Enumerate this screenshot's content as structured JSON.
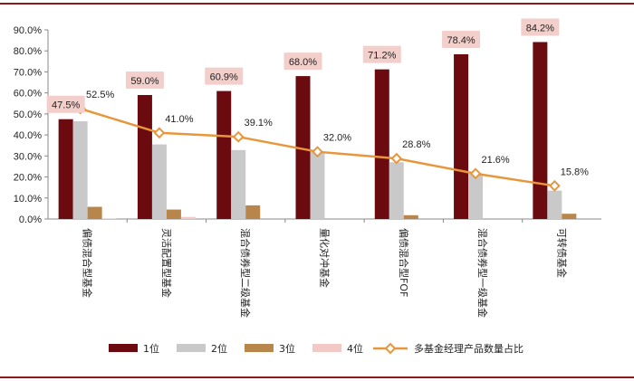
{
  "chart_data": {
    "type": "bar+line",
    "categories": [
      "偏债混合型基金",
      "灵活配置型基金",
      "混合债券型二级基金",
      "量化对冲基金",
      "偏债混合型FOF",
      "混合债券型一级基金",
      "可转债基金"
    ],
    "series": [
      {
        "name": "1位",
        "type": "bar",
        "color": "#6b0a0f",
        "values": [
          47.5,
          59.0,
          60.9,
          68.0,
          71.2,
          78.4,
          84.2
        ]
      },
      {
        "name": "2位",
        "type": "bar",
        "color": "#c9c9c9",
        "values": [
          46.5,
          35.5,
          32.8,
          32.0,
          27.0,
          21.6,
          13.5
        ]
      },
      {
        "name": "3位",
        "type": "bar",
        "color": "#b8864b",
        "values": [
          5.8,
          4.5,
          6.5,
          0,
          1.8,
          0,
          2.5
        ]
      },
      {
        "name": "4位",
        "type": "bar",
        "color": "#f2c9c4",
        "values": [
          0.3,
          1.0,
          0,
          0,
          0,
          0,
          0
        ]
      },
      {
        "name": "多基金经理产品数量占比",
        "type": "line",
        "color": "#e8963c",
        "values": [
          52.5,
          41.0,
          39.1,
          32.0,
          28.8,
          21.6,
          15.8
        ]
      }
    ],
    "bar_labels": [
      "47.5%",
      "59.0%",
      "60.9%",
      "68.0%",
      "71.2%",
      "78.4%",
      "84.2%"
    ],
    "line_labels": [
      "52.5%",
      "41.0%",
      "39.1%",
      "32.0%",
      "28.8%",
      "21.6%",
      "15.8%"
    ],
    "y_ticks": [
      "0.0%",
      "10.0%",
      "20.0%",
      "30.0%",
      "40.0%",
      "50.0%",
      "60.0%",
      "70.0%",
      "80.0%",
      "90.0%"
    ],
    "ylim": [
      0,
      90
    ],
    "legend_position": "bottom",
    "title": "",
    "xlabel": "",
    "ylabel": ""
  },
  "colors": {
    "frame": "#8b1a1f",
    "axis": "#888888"
  }
}
